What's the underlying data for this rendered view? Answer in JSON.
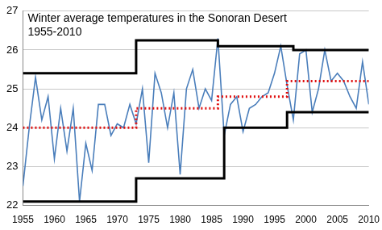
{
  "chart_data": {
    "type": "line",
    "title": "Winter average temperatures in the Sonoran Desert\n1955-2010",
    "x": [
      1955,
      1956,
      1957,
      1958,
      1959,
      1960,
      1961,
      1962,
      1963,
      1964,
      1965,
      1966,
      1967,
      1968,
      1969,
      1970,
      1971,
      1972,
      1973,
      1974,
      1975,
      1976,
      1977,
      1978,
      1979,
      1980,
      1981,
      1982,
      1983,
      1984,
      1985,
      1986,
      1987,
      1988,
      1989,
      1990,
      1991,
      1992,
      1993,
      1994,
      1995,
      1996,
      1997,
      1998,
      1999,
      2000,
      2001,
      2002,
      2003,
      2004,
      2005,
      2006,
      2007,
      2008,
      2009,
      2010
    ],
    "series": [
      {
        "color": "#4a7ebb",
        "type": "line",
        "line_style": "solid",
        "values": [
          22.5,
          24.0,
          25.3,
          24.2,
          24.8,
          23.2,
          24.5,
          23.4,
          24.5,
          22.1,
          23.6,
          22.9,
          24.6,
          24.6,
          23.8,
          24.1,
          24.0,
          24.6,
          24.1,
          25.0,
          23.1,
          25.4,
          24.9,
          24.0,
          24.9,
          22.8,
          25.0,
          25.5,
          24.5,
          25.0,
          24.7,
          26.3,
          23.8,
          24.6,
          24.8,
          23.9,
          24.5,
          24.6,
          24.8,
          24.9,
          25.4,
          26.1,
          25.1,
          24.2,
          25.9,
          26.0,
          24.4,
          25.0,
          26.0,
          25.2,
          25.4,
          25.2,
          24.8,
          24.5,
          25.7,
          24.6
        ]
      },
      {
        "color": "#000000",
        "type": "step",
        "line_style": "solid",
        "values": [
          25.4,
          25.4,
          25.4,
          25.4,
          25.4,
          25.4,
          25.4,
          25.4,
          25.4,
          25.4,
          25.4,
          25.4,
          25.4,
          25.4,
          25.4,
          25.4,
          25.4,
          25.4,
          25.4,
          26.25,
          26.25,
          26.25,
          26.25,
          26.25,
          26.25,
          26.25,
          26.25,
          26.25,
          26.25,
          26.25,
          26.25,
          26.25,
          26.1,
          26.1,
          26.1,
          26.1,
          26.1,
          26.1,
          26.1,
          26.1,
          26.1,
          26.1,
          26.1,
          26.1,
          26.0,
          26.0,
          26.0,
          26.0,
          26.0,
          26.0,
          26.0,
          26.0,
          26.0,
          26.0,
          26.0,
          26.0
        ]
      },
      {
        "color": "#000000",
        "type": "step",
        "line_style": "solid",
        "values": [
          22.1,
          22.1,
          22.1,
          22.1,
          22.1,
          22.1,
          22.1,
          22.1,
          22.1,
          22.1,
          22.1,
          22.1,
          22.1,
          22.1,
          22.1,
          22.1,
          22.1,
          22.1,
          22.1,
          22.7,
          22.7,
          22.7,
          22.7,
          22.7,
          22.7,
          22.7,
          22.7,
          22.7,
          22.7,
          22.7,
          22.7,
          22.7,
          22.7,
          24.0,
          24.0,
          24.0,
          24.0,
          24.0,
          24.0,
          24.0,
          24.0,
          24.0,
          24.0,
          24.4,
          24.4,
          24.4,
          24.4,
          24.4,
          24.4,
          24.4,
          24.4,
          24.4,
          24.4,
          24.4,
          24.4,
          24.4
        ]
      },
      {
        "color": "#e01010",
        "type": "step",
        "line_style": "dotted",
        "values": [
          24.0,
          24.0,
          24.0,
          24.0,
          24.0,
          24.0,
          24.0,
          24.0,
          24.0,
          24.0,
          24.0,
          24.0,
          24.0,
          24.0,
          24.0,
          24.0,
          24.0,
          24.0,
          24.0,
          24.5,
          24.5,
          24.5,
          24.5,
          24.5,
          24.5,
          24.5,
          24.5,
          24.5,
          24.5,
          24.5,
          24.5,
          24.5,
          24.8,
          24.8,
          24.8,
          24.8,
          24.8,
          24.8,
          24.8,
          24.8,
          24.8,
          24.8,
          24.8,
          25.2,
          25.2,
          25.2,
          25.2,
          25.2,
          25.2,
          25.2,
          25.2,
          25.2,
          25.2,
          25.2,
          25.2,
          25.2
        ]
      }
    ],
    "xlim": [
      1955,
      2010
    ],
    "xticks": [
      1955,
      1960,
      1965,
      1970,
      1975,
      1980,
      1985,
      1990,
      1995,
      2000,
      2005,
      2010
    ],
    "ylim": [
      22,
      27
    ],
    "yticks": [
      22,
      23,
      24,
      25,
      26,
      27
    ],
    "grid": true
  }
}
